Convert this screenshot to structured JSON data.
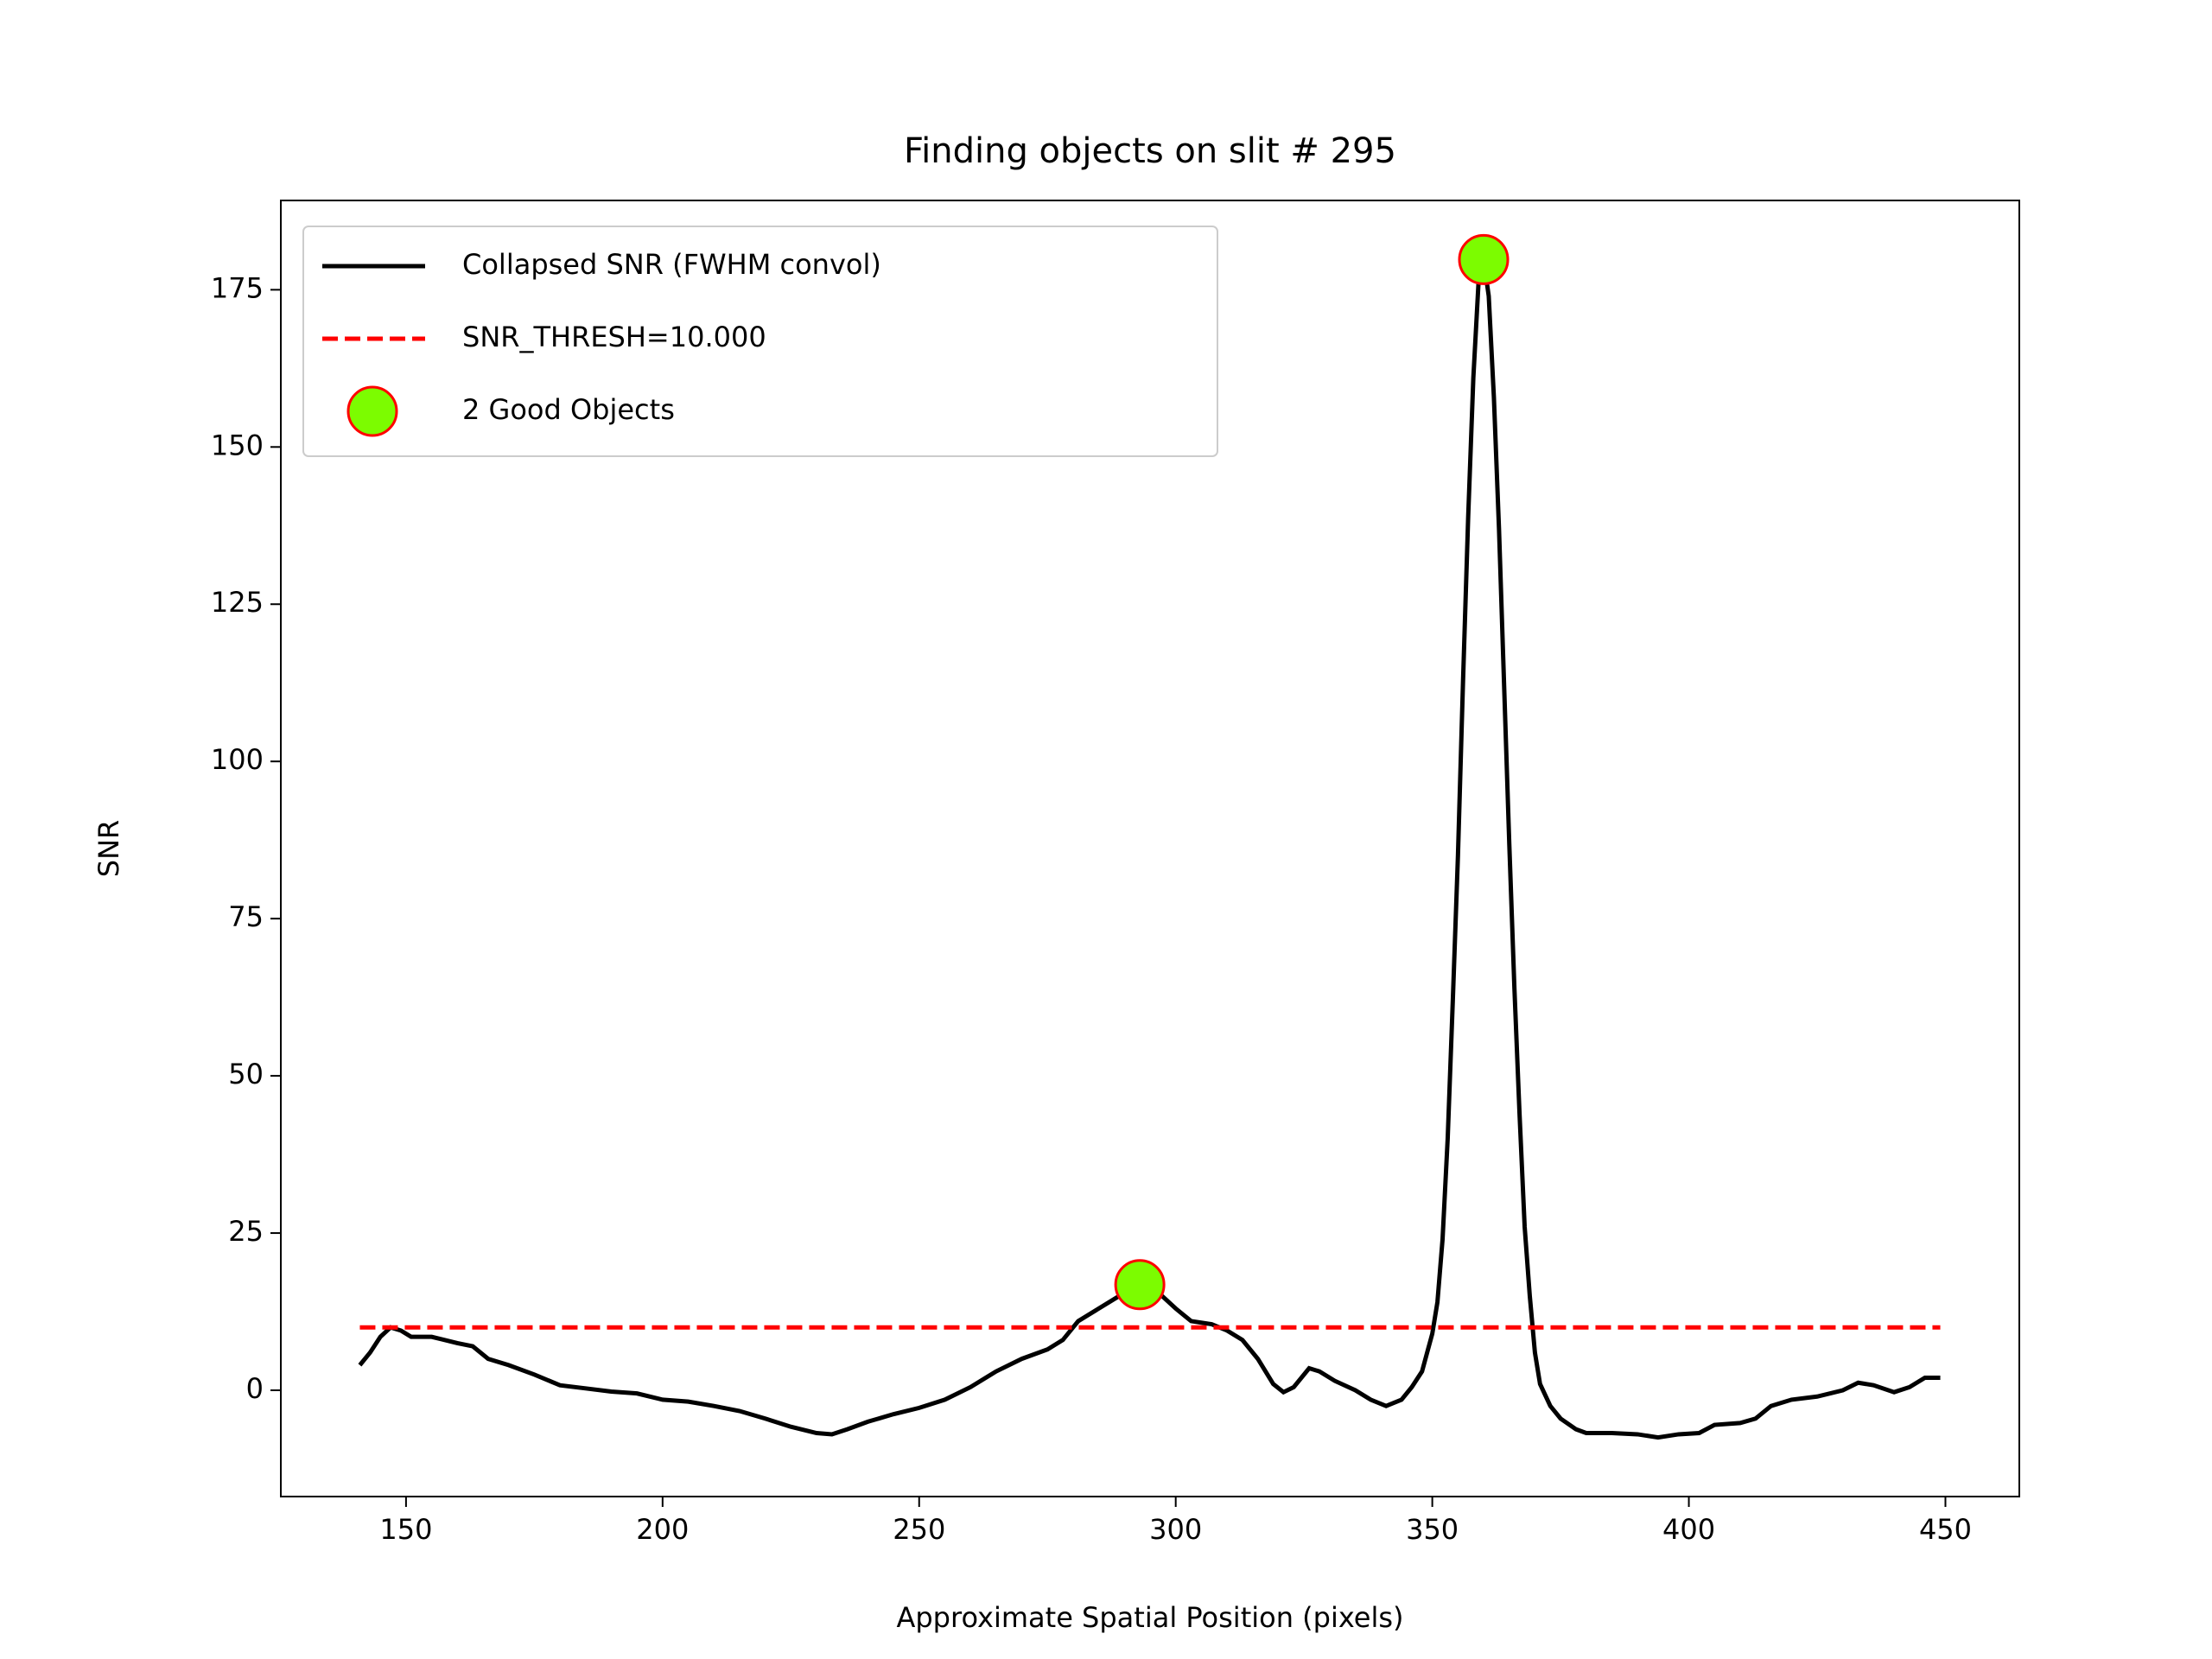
{
  "chart_data": {
    "type": "line",
    "title": "Finding objects on slit # 295",
    "xlabel": "Approximate Spatial Position (pixels)",
    "ylabel": "SNR",
    "xlim": [
      125.6,
      464.4
    ],
    "ylim": [
      -16.9,
      189.2
    ],
    "xticks": [
      150,
      200,
      250,
      300,
      350,
      400,
      450
    ],
    "yticks": [
      0,
      25,
      50,
      75,
      100,
      125,
      150,
      175
    ],
    "legend": "upper left",
    "series": [
      {
        "name": "Collapsed SNR (FWHM convol)",
        "color": "#000000",
        "style": "solid",
        "x": [
          141,
          143,
          145,
          147,
          149,
          151,
          155,
          160,
          163,
          166,
          170,
          175,
          180,
          185,
          190,
          195,
          200,
          205,
          210,
          215,
          220,
          225,
          230,
          233,
          236,
          240,
          245,
          250,
          255,
          260,
          265,
          270,
          275,
          278,
          281,
          285,
          290,
          293,
          296,
          300,
          303,
          307,
          310,
          313,
          316,
          319,
          321,
          323,
          326,
          328,
          331,
          335,
          338,
          341,
          344,
          346,
          348,
          350,
          351,
          352,
          353,
          354,
          355,
          356,
          357,
          358,
          359,
          360,
          361,
          362,
          363,
          364,
          365,
          366,
          367,
          368,
          369,
          370,
          371,
          373,
          375,
          378,
          380,
          385,
          390,
          394,
          398,
          402,
          405,
          410,
          413,
          416,
          420,
          425,
          430,
          433,
          436,
          440,
          443,
          446,
          449
        ],
        "values": [
          4,
          6,
          8.5,
          10,
          9.5,
          8.5,
          8.5,
          7.5,
          7,
          5,
          4,
          2.5,
          0.8,
          0.3,
          -0.2,
          -0.5,
          -1.5,
          -1.8,
          -2.5,
          -3.3,
          -4.5,
          -5.8,
          -6.8,
          -7,
          -6.2,
          -5,
          -3.8,
          -2.8,
          -1.5,
          0.5,
          3,
          5,
          6.5,
          8,
          11,
          13,
          15.5,
          16.8,
          16,
          13,
          11,
          10.5,
          9.5,
          8,
          5,
          1,
          -0.3,
          0.5,
          3.5,
          3,
          1.5,
          0,
          -1.5,
          -2.5,
          -1.5,
          0.5,
          3,
          9,
          14,
          24,
          40,
          62,
          85,
          113,
          139,
          161,
          176,
          179.8,
          174,
          158,
          137,
          112,
          87,
          64,
          44,
          26,
          15,
          6,
          1,
          -2.5,
          -4.5,
          -6.2,
          -6.8,
          -6.8,
          -7,
          -7.5,
          -7,
          -6.8,
          -5.5,
          -5.2,
          -4.5,
          -2.5,
          -1.5,
          -1,
          0,
          1.2,
          0.8,
          -0.3,
          0.5,
          2,
          2
        ]
      },
      {
        "name": "SNR_THRESH=10.000",
        "color": "#ff0000",
        "style": "dashed",
        "x": [
          141,
          449
        ],
        "values": [
          10,
          10
        ]
      },
      {
        "name": "2 Good Objects",
        "color": "#7cfc00",
        "edgecolor": "#ff0000",
        "style": "marker",
        "x": [
          293,
          360
        ],
        "values": [
          16.8,
          179.8
        ]
      }
    ]
  }
}
